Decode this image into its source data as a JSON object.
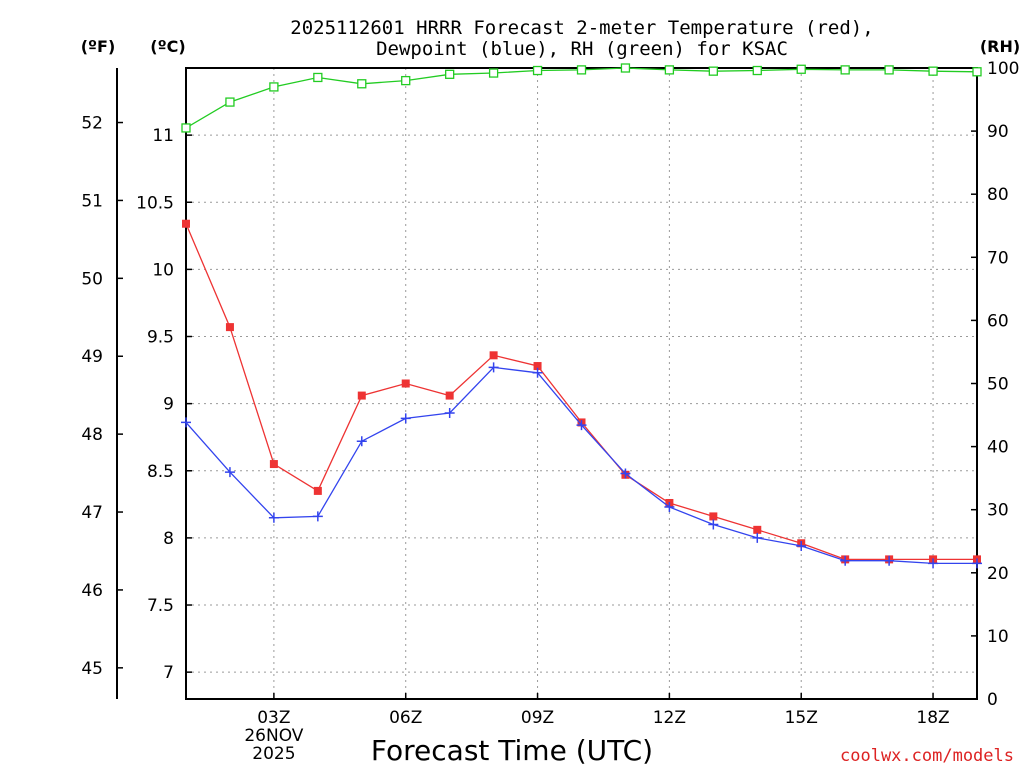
{
  "chart_data": {
    "type": "line",
    "title_lines": [
      "2025112601 HRRR Forecast 2-meter Temperature (red),",
      "Dewpoint (blue), RH (green) for KSAC"
    ],
    "xlabel": "Forecast Time (UTC)",
    "x_ticks": [
      {
        "hour": 3,
        "lines": [
          "03Z",
          "26NOV",
          "2025"
        ]
      },
      {
        "hour": 6,
        "lines": [
          "06Z"
        ]
      },
      {
        "hour": 9,
        "lines": [
          "09Z"
        ]
      },
      {
        "hour": 12,
        "lines": [
          "12Z"
        ]
      },
      {
        "hour": 15,
        "lines": [
          "15Z"
        ]
      },
      {
        "hour": 18,
        "lines": [
          "18Z"
        ]
      }
    ],
    "xlim": [
      1,
      19
    ],
    "hours": [
      1,
      2,
      3,
      4,
      5,
      6,
      7,
      8,
      9,
      10,
      11,
      12,
      13,
      14,
      15,
      16,
      17,
      18,
      19
    ],
    "axes": {
      "fahrenheit": {
        "unit_label": "(ºF)",
        "ylim": [
          44.6,
          52.7
        ],
        "ticks": [
          45,
          46,
          47,
          48,
          49,
          50,
          51,
          52
        ]
      },
      "celsius": {
        "unit_label": "(ºC)",
        "ylim": [
          6.8,
          11.5
        ],
        "ticks": [
          "7",
          "7.5",
          "8",
          "8.5",
          "9",
          "9.5",
          "10",
          "10.5",
          "11"
        ]
      },
      "rh": {
        "unit_label": "(RH)",
        "ylim": [
          0,
          100
        ],
        "ticks": [
          0,
          10,
          20,
          30,
          40,
          50,
          60,
          70,
          80,
          90,
          100
        ]
      }
    },
    "series": [
      {
        "name": "Temperature",
        "axis": "celsius",
        "color": "#ee3333",
        "marker": "filled-square",
        "values": [
          10.34,
          9.57,
          8.55,
          8.35,
          9.06,
          9.15,
          9.06,
          9.36,
          9.28,
          8.86,
          8.47,
          8.26,
          8.16,
          8.06,
          7.96,
          7.84,
          7.84,
          7.84,
          7.84
        ]
      },
      {
        "name": "Dewpoint",
        "axis": "celsius",
        "color": "#3344ee",
        "marker": "plus",
        "values": [
          8.86,
          8.49,
          8.15,
          8.16,
          8.72,
          8.89,
          8.93,
          9.27,
          9.23,
          8.84,
          8.48,
          8.23,
          8.1,
          8.0,
          7.94,
          7.83,
          7.83,
          7.81,
          7.81
        ]
      },
      {
        "name": "RH",
        "axis": "rh",
        "color": "#22cc22",
        "marker": "open-square",
        "values": [
          90.5,
          94.6,
          97.0,
          98.5,
          97.5,
          98.0,
          99.0,
          99.2,
          99.6,
          99.7,
          100.0,
          99.7,
          99.5,
          99.6,
          99.8,
          99.7,
          99.7,
          99.5,
          99.4
        ]
      }
    ],
    "grid": true,
    "credit": "coolwx.com/models"
  }
}
